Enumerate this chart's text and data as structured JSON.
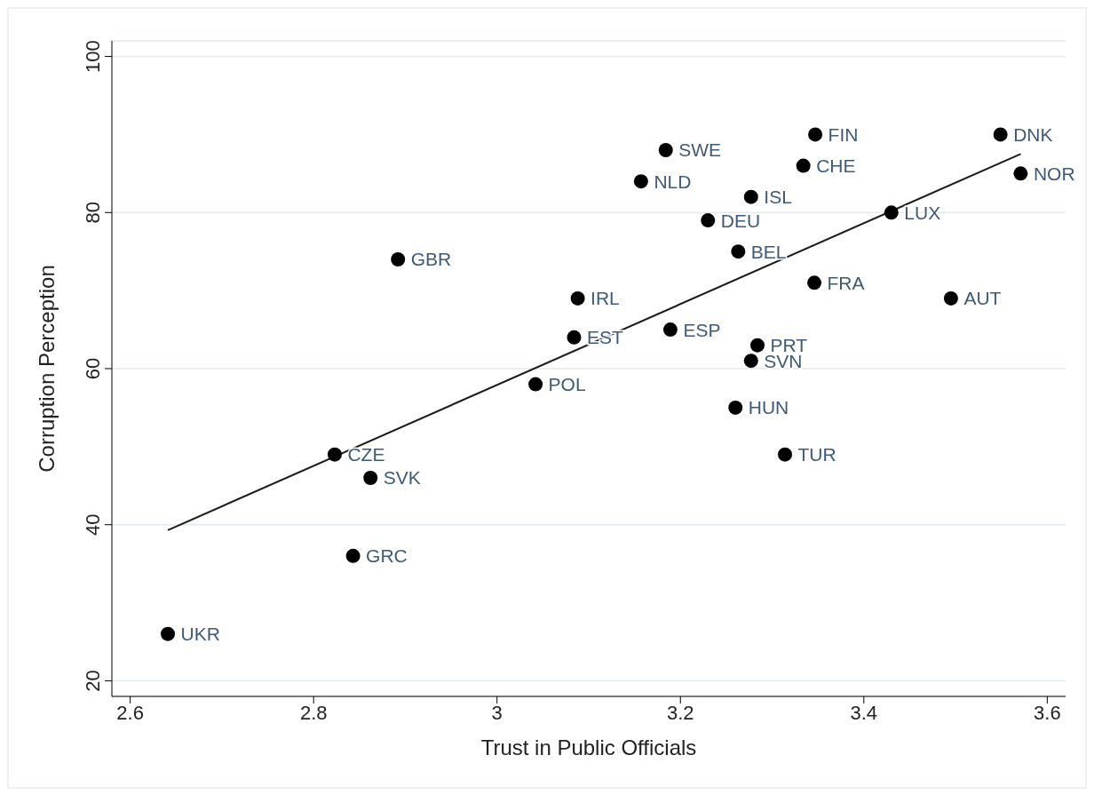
{
  "chart_data": {
    "type": "scatter",
    "xlabel": "Trust in Public Officials",
    "ylabel": "Corruption Perception",
    "xlim": [
      2.58,
      3.62
    ],
    "ylim": [
      18,
      102
    ],
    "xticks": [
      2.6,
      2.8,
      3,
      3.2,
      3.4,
      3.6
    ],
    "yticks": [
      20,
      40,
      60,
      80,
      100
    ],
    "grid": "y",
    "legend": false,
    "marker": "circle",
    "series": [
      {
        "color": "#000000",
        "x": [
          2.641,
          2.843,
          2.862,
          2.823,
          2.892,
          3.042,
          3.084,
          3.088,
          3.157,
          3.184,
          3.189,
          3.23,
          3.263,
          3.26,
          3.277,
          3.277,
          3.284,
          3.314,
          3.334,
          3.347,
          3.346,
          3.43,
          3.495,
          3.549,
          3.571
        ],
        "values": [
          26,
          36,
          46,
          49,
          74,
          58,
          64,
          69,
          84,
          88,
          65,
          79,
          75,
          55,
          61,
          82,
          63,
          49,
          86,
          90,
          71,
          80,
          69,
          90,
          85
        ],
        "value_labels": [
          "UKR",
          "GRC",
          "SVK",
          "CZE",
          "GBR",
          "POL",
          "EST",
          "IRL",
          "NLD",
          "SWE",
          "ESP",
          "DEU",
          "BEL",
          "HUN",
          "SVN",
          "ISL",
          "PRT",
          "TUR",
          "CHE",
          "FIN",
          "FRA",
          "LUX",
          "AUT",
          "DNK",
          "NOR"
        ]
      },
      {
        "type": "line",
        "color": "#1a1a1a",
        "x": [
          2.641,
          3.571
        ],
        "values": [
          39.3,
          87.5
        ],
        "marker": "none"
      }
    ]
  }
}
